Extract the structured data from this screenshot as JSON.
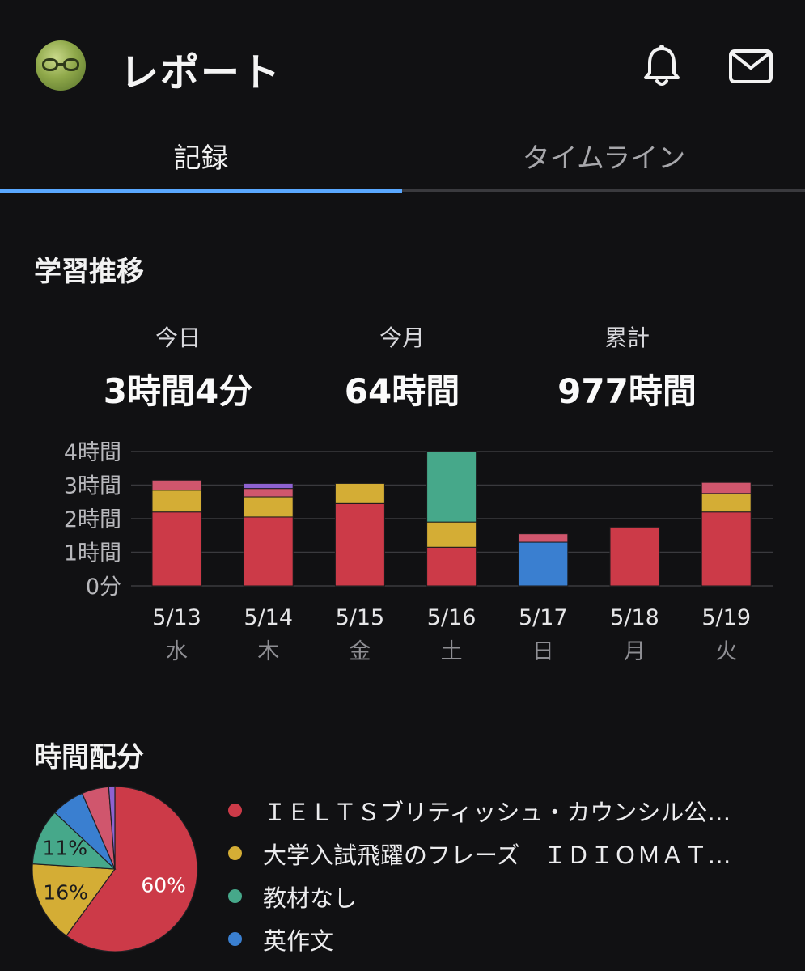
{
  "header": {
    "title": "レポート",
    "avatar_icon": "glasses-avatar-icon",
    "bell_icon": "bell-icon",
    "mail_icon": "mail-icon"
  },
  "tabs": [
    {
      "label": "記録",
      "active": true
    },
    {
      "label": "タイムライン",
      "active": false
    }
  ],
  "trend": {
    "title": "学習推移",
    "stats": [
      {
        "label": "今日",
        "value": "3時間4分"
      },
      {
        "label": "今月",
        "value": "64時間"
      },
      {
        "label": "累計",
        "value": "977時間"
      }
    ]
  },
  "allocation": {
    "title": "時間配分"
  },
  "colors": {
    "accent": "#5aa8ff",
    "red": "#cc3a48",
    "yellow": "#d4ad35",
    "green": "#46a88a",
    "blue": "#3a7fd0",
    "pink": "#d0566d",
    "purple": "#8e62d0"
  },
  "chart_data": [
    {
      "type": "bar",
      "stacked": true,
      "categories": [
        "5/13",
        "5/14",
        "5/15",
        "5/16",
        "5/17",
        "5/18",
        "5/19"
      ],
      "weekdays": [
        "水",
        "木",
        "金",
        "土",
        "日",
        "月",
        "火"
      ],
      "y_tick_labels": [
        "0分",
        "1時間",
        "2時間",
        "3時間",
        "4時間"
      ],
      "ylim": [
        0,
        4
      ],
      "grid": true,
      "series": [
        {
          "color": "#cc3a48",
          "values": [
            2.2,
            2.05,
            2.45,
            1.15,
            0,
            1.75,
            2.2
          ]
        },
        {
          "color": "#d4ad35",
          "values": [
            0.65,
            0.6,
            0.6,
            0.75,
            0,
            0,
            0.55
          ]
        },
        {
          "color": "#46a88a",
          "values": [
            0,
            0,
            0,
            2.1,
            0,
            0,
            0
          ]
        },
        {
          "color": "#3a7fd0",
          "values": [
            0,
            0,
            0,
            0,
            1.3,
            0,
            0
          ]
        },
        {
          "color": "#d0566d",
          "values": [
            0.3,
            0.25,
            0,
            0,
            0.25,
            0,
            0.33
          ]
        },
        {
          "color": "#8e62d0",
          "values": [
            0,
            0.15,
            0,
            0,
            0,
            0,
            0
          ]
        }
      ]
    },
    {
      "type": "pie",
      "slices": [
        {
          "name": "ＩＥＬＴＳブリティッシュ・カウンシル公…",
          "percent": 60,
          "label": "60%",
          "color": "#cc3a48"
        },
        {
          "name": "大学入試飛躍のフレーズ　ＩＤＩＯＭＡＴ…",
          "percent": 16,
          "label": "16%",
          "color": "#d4ad35"
        },
        {
          "name": "教材なし",
          "percent": 11,
          "label": "11%",
          "color": "#46a88a"
        },
        {
          "name": "英作文",
          "percent": 6.5,
          "label": "",
          "color": "#3a7fd0"
        },
        {
          "name": "",
          "percent": 5.3,
          "label": "",
          "color": "#d0566d"
        },
        {
          "name": "",
          "percent": 1.2,
          "label": "",
          "color": "#8e62d0"
        }
      ]
    }
  ]
}
